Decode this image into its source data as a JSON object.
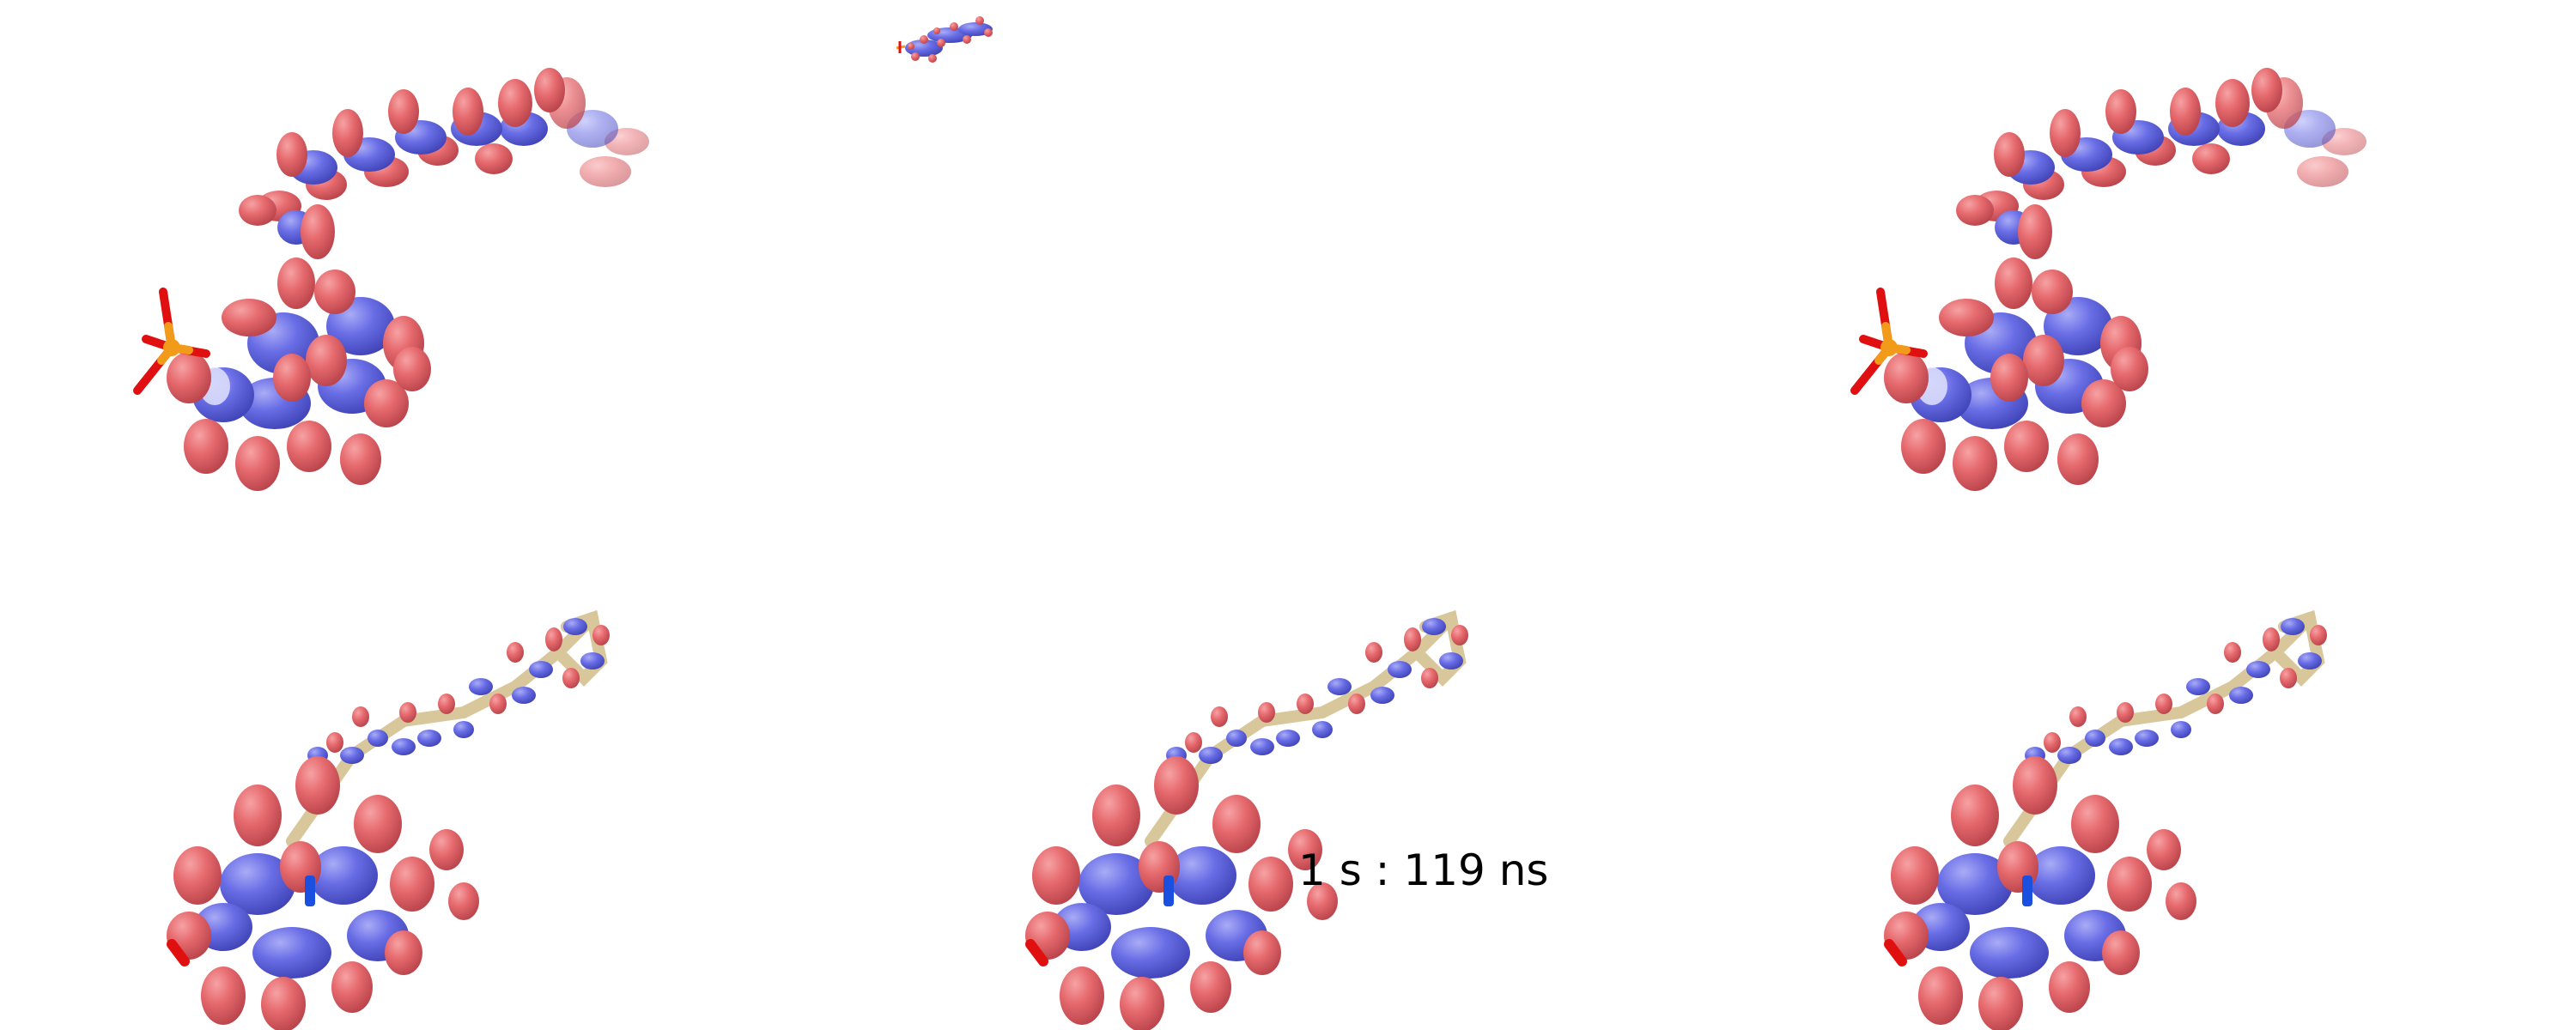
{
  "time_label": "1 s : 119 ns",
  "palette": {
    "lobe_red": "#e66a6e",
    "lobe_red_dark": "#c94c52",
    "lobe_blue": "#6a6ee6",
    "lobe_blue_dark": "#4a4ec4",
    "bond_tan": "#d8c79a",
    "phosphorus": "#f29a1a",
    "oxygen": "#e01010",
    "nitrogen": "#1a4fe0"
  },
  "panels": [
    {
      "id": "top-left",
      "style": "large-lobes"
    },
    {
      "id": "top-center",
      "style": "thumbnail"
    },
    {
      "id": "top-right",
      "style": "large-lobes"
    },
    {
      "id": "bottom-left",
      "style": "small-lobes"
    },
    {
      "id": "bottom-center",
      "style": "small-lobes"
    },
    {
      "id": "bottom-right",
      "style": "small-lobes"
    }
  ]
}
